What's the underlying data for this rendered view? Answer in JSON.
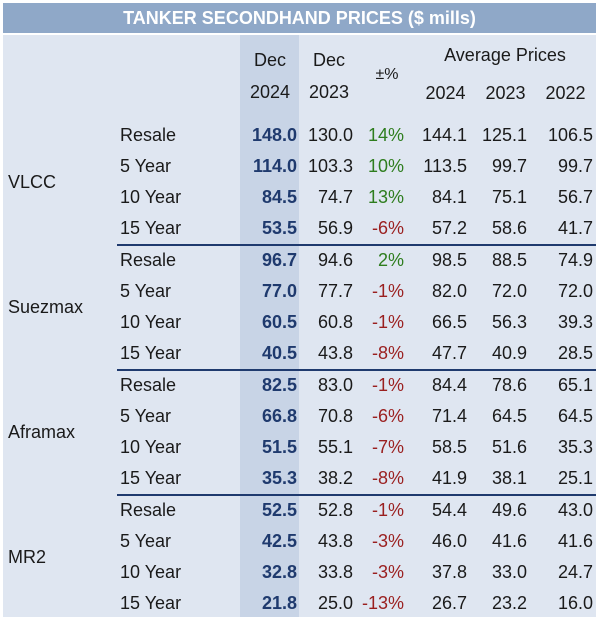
{
  "title": "TANKER SECONDHAND PRICES ($ mills)",
  "headers": {
    "dec2024": [
      "Dec",
      "2024"
    ],
    "dec2023": [
      "Dec",
      "2023"
    ],
    "change": "±%",
    "average": "Average Prices",
    "avg_years": [
      "2024",
      "2023",
      "2022"
    ]
  },
  "groups": [
    {
      "name": "VLCC",
      "rows": [
        {
          "label": "Resale",
          "dec2024": "148.0",
          "dec2023": "130.0",
          "change": "14%",
          "sign": "pos",
          "avg2024": "144.1",
          "avg2023": "125.1",
          "avg2022": "106.5"
        },
        {
          "label": "5 Year",
          "dec2024": "114.0",
          "dec2023": "103.3",
          "change": "10%",
          "sign": "pos",
          "avg2024": "113.5",
          "avg2023": "99.7",
          "avg2022": "99.7"
        },
        {
          "label": "10 Year",
          "dec2024": "84.5",
          "dec2023": "74.7",
          "change": "13%",
          "sign": "pos",
          "avg2024": "84.1",
          "avg2023": "75.1",
          "avg2022": "56.7"
        },
        {
          "label": "15 Year",
          "dec2024": "53.5",
          "dec2023": "56.9",
          "change": "-6%",
          "sign": "neg",
          "avg2024": "57.2",
          "avg2023": "58.6",
          "avg2022": "41.7"
        }
      ]
    },
    {
      "name": "Suezmax",
      "rows": [
        {
          "label": "Resale",
          "dec2024": "96.7",
          "dec2023": "94.6",
          "change": "2%",
          "sign": "pos",
          "avg2024": "98.5",
          "avg2023": "88.5",
          "avg2022": "74.9"
        },
        {
          "label": "5 Year",
          "dec2024": "77.0",
          "dec2023": "77.7",
          "change": "-1%",
          "sign": "neg",
          "avg2024": "82.0",
          "avg2023": "72.0",
          "avg2022": "72.0"
        },
        {
          "label": "10 Year",
          "dec2024": "60.5",
          "dec2023": "60.8",
          "change": "-1%",
          "sign": "neg",
          "avg2024": "66.5",
          "avg2023": "56.3",
          "avg2022": "39.3"
        },
        {
          "label": "15 Year",
          "dec2024": "40.5",
          "dec2023": "43.8",
          "change": "-8%",
          "sign": "neg",
          "avg2024": "47.7",
          "avg2023": "40.9",
          "avg2022": "28.5"
        }
      ]
    },
    {
      "name": "Aframax",
      "rows": [
        {
          "label": "Resale",
          "dec2024": "82.5",
          "dec2023": "83.0",
          "change": "-1%",
          "sign": "neg",
          "avg2024": "84.4",
          "avg2023": "78.6",
          "avg2022": "65.1"
        },
        {
          "label": "5 Year",
          "dec2024": "66.8",
          "dec2023": "70.8",
          "change": "-6%",
          "sign": "neg",
          "avg2024": "71.4",
          "avg2023": "64.5",
          "avg2022": "64.5"
        },
        {
          "label": "10 Year",
          "dec2024": "51.5",
          "dec2023": "55.1",
          "change": "-7%",
          "sign": "neg",
          "avg2024": "58.5",
          "avg2023": "51.6",
          "avg2022": "35.3"
        },
        {
          "label": "15 Year",
          "dec2024": "35.3",
          "dec2023": "38.2",
          "change": "-8%",
          "sign": "neg",
          "avg2024": "41.9",
          "avg2023": "38.1",
          "avg2022": "25.1"
        }
      ]
    },
    {
      "name": "MR2",
      "rows": [
        {
          "label": "Resale",
          "dec2024": "52.5",
          "dec2023": "52.8",
          "change": "-1%",
          "sign": "neg",
          "avg2024": "54.4",
          "avg2023": "49.6",
          "avg2022": "43.0"
        },
        {
          "label": "5 Year",
          "dec2024": "42.5",
          "dec2023": "43.8",
          "change": "-3%",
          "sign": "neg",
          "avg2024": "46.0",
          "avg2023": "41.6",
          "avg2022": "41.6"
        },
        {
          "label": "10 Year",
          "dec2024": "32.8",
          "dec2023": "33.8",
          "change": "-3%",
          "sign": "neg",
          "avg2024": "37.8",
          "avg2023": "33.0",
          "avg2022": "24.7"
        },
        {
          "label": "15 Year",
          "dec2024": "21.8",
          "dec2023": "25.0",
          "change": "-13%",
          "sign": "neg",
          "avg2024": "26.7",
          "avg2023": "23.2",
          "avg2022": "16.0"
        }
      ]
    }
  ]
}
